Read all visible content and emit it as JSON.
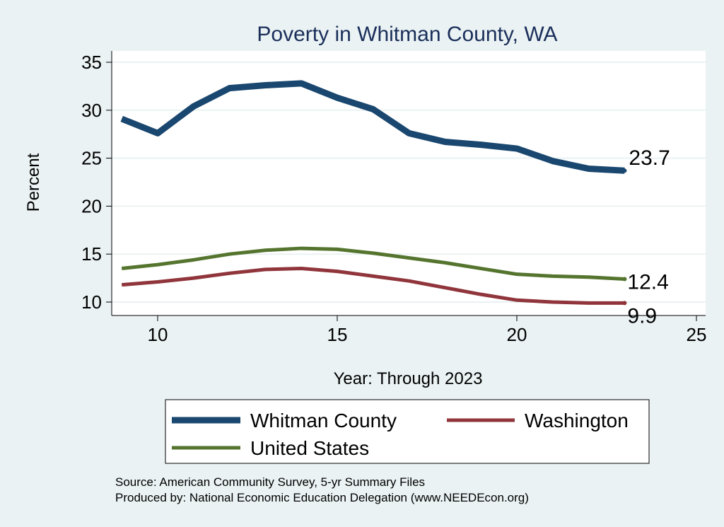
{
  "chart_data": {
    "type": "line",
    "title": "Poverty in Whitman County, WA",
    "xlabel": "Year: Through 2023",
    "ylabel": "Percent",
    "xlim": [
      8.7,
      25.3
    ],
    "ylim": [
      8.7,
      36.2
    ],
    "xticks": [
      10,
      15,
      20,
      25
    ],
    "yticks": [
      10,
      15,
      20,
      25,
      30,
      35
    ],
    "grid": true,
    "legend_position": "bottom",
    "x": [
      9,
      10,
      11,
      12,
      13,
      14,
      15,
      16,
      17,
      18,
      19,
      20,
      21,
      22,
      23
    ],
    "series": [
      {
        "name": "Whitman County",
        "color": "#1a476f",
        "values": [
          29.1,
          27.6,
          30.4,
          32.3,
          32.6,
          32.8,
          31.3,
          30.1,
          27.6,
          26.7,
          26.4,
          26.0,
          24.7,
          23.9,
          23.7
        ],
        "end_label": "23.7"
      },
      {
        "name": "Washington",
        "color": "#90353b",
        "values": [
          11.8,
          12.1,
          12.5,
          13.0,
          13.4,
          13.5,
          13.2,
          12.7,
          12.2,
          11.5,
          10.8,
          10.2,
          10.0,
          9.9,
          9.9
        ],
        "end_label": "9.9"
      },
      {
        "name": "United States",
        "color": "#55752f",
        "values": [
          13.5,
          13.9,
          14.4,
          15.0,
          15.4,
          15.6,
          15.5,
          15.1,
          14.6,
          14.1,
          13.5,
          12.9,
          12.7,
          12.6,
          12.4
        ],
        "end_label": "12.4"
      }
    ],
    "notes": [
      "Source: American Community Survey, 5-yr Summary Files",
      "Produced by: National Economic Education Delegation (www.NEEDEcon.org)"
    ]
  }
}
